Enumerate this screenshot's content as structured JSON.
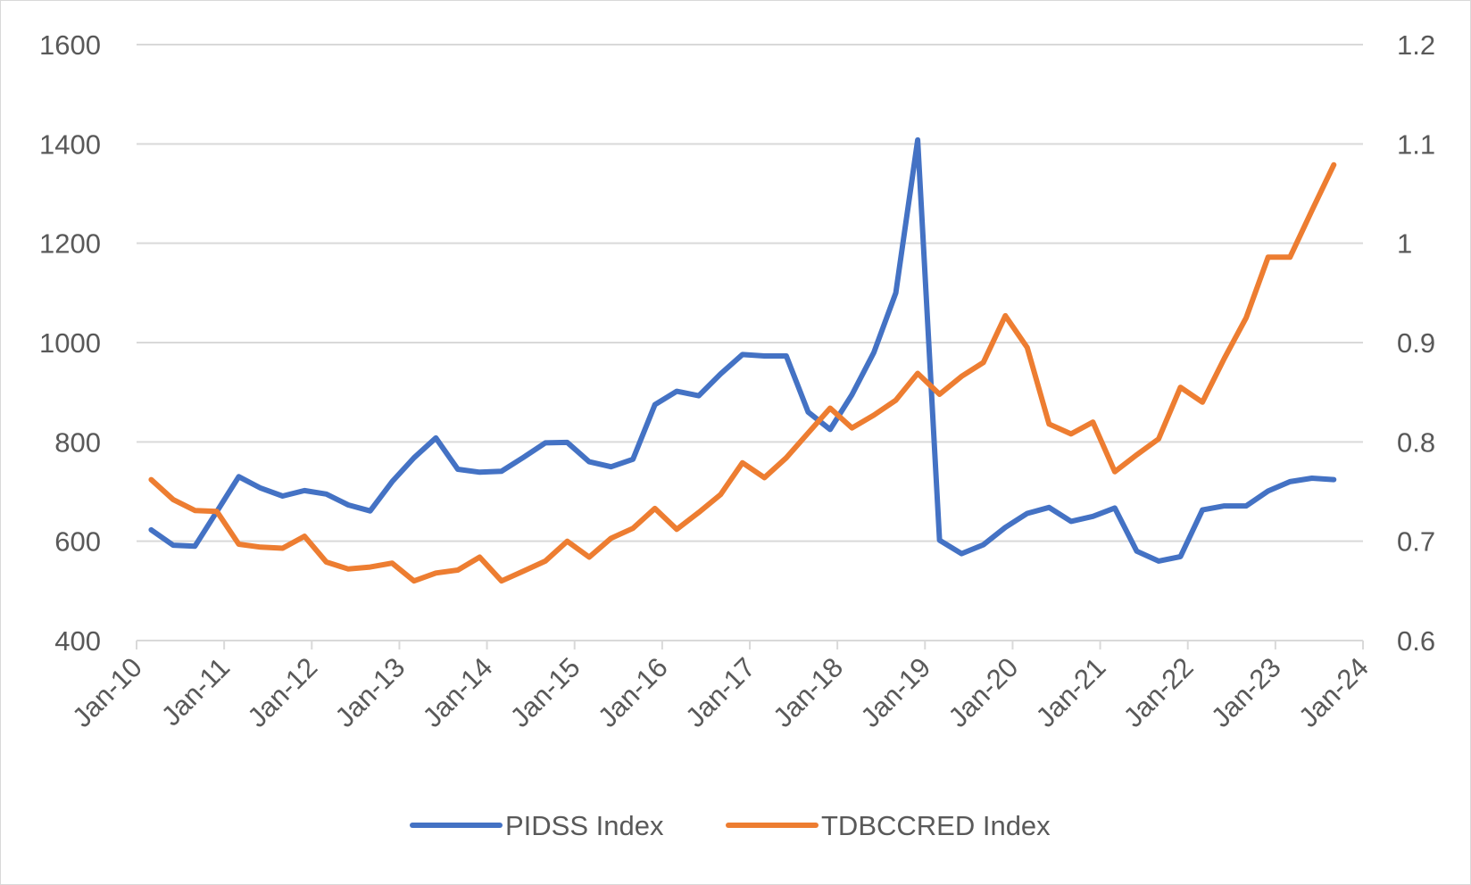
{
  "chart_data": {
    "type": "line",
    "title": "",
    "xlabel": "",
    "ylabel": "",
    "x_ticks": [
      "Jan-10",
      "Jan-11",
      "Jan-12",
      "Jan-13",
      "Jan-14",
      "Jan-15",
      "Jan-16",
      "Jan-17",
      "Jan-18",
      "Jan-19",
      "Jan-20",
      "Jan-21",
      "Jan-22",
      "Jan-23",
      "Jan-24"
    ],
    "x_range": [
      "2010-01",
      "2024-01"
    ],
    "y_left": {
      "min": 400,
      "max": 1600,
      "ticks": [
        "400",
        "600",
        "800",
        "1000",
        "1200",
        "1400",
        "1600"
      ]
    },
    "y_right": {
      "min": 0.6,
      "max": 1.2,
      "ticks": [
        "0.6",
        "0.7",
        "0.8",
        "0.9",
        "1",
        "1.1",
        "1.2"
      ]
    },
    "grid": true,
    "legend_position": "bottom",
    "x": [
      "2010-03",
      "2010-06",
      "2010-09",
      "2010-12",
      "2011-03",
      "2011-06",
      "2011-09",
      "2011-12",
      "2012-03",
      "2012-06",
      "2012-09",
      "2012-12",
      "2013-03",
      "2013-06",
      "2013-09",
      "2013-12",
      "2014-03",
      "2014-06",
      "2014-09",
      "2014-12",
      "2015-03",
      "2015-06",
      "2015-09",
      "2015-12",
      "2016-03",
      "2016-06",
      "2016-09",
      "2016-12",
      "2017-03",
      "2017-06",
      "2017-09",
      "2017-12",
      "2018-03",
      "2018-06",
      "2018-09",
      "2018-12",
      "2019-03",
      "2019-06",
      "2019-09",
      "2019-12",
      "2020-03",
      "2020-06",
      "2020-09",
      "2020-12",
      "2021-03",
      "2021-06",
      "2021-09",
      "2021-12",
      "2022-03",
      "2022-06",
      "2022-09",
      "2022-12",
      "2023-03",
      "2023-06",
      "2023-09"
    ],
    "series": [
      {
        "name": "PIDSS Index",
        "axis": "left",
        "color": "#4472c4",
        "values": [
          623,
          592,
          590,
          660,
          730,
          707,
          691,
          702,
          695,
          673,
          661,
          720,
          768,
          808,
          745,
          739,
          741,
          769,
          798,
          799,
          760,
          750,
          765,
          875,
          902,
          893,
          937,
          976,
          973,
          973,
          860,
          825,
          895,
          980,
          1100,
          1408,
          602,
          575,
          593,
          628,
          656,
          668,
          640,
          650,
          667,
          580,
          560,
          569,
          663,
          671,
          671,
          701,
          720,
          727,
          724
        ]
      },
      {
        "name": "TDBCCRED Index",
        "axis": "right",
        "color": "#ed7d31",
        "values": [
          0.762,
          0.742,
          0.731,
          0.73,
          0.697,
          0.694,
          0.693,
          0.705,
          0.679,
          0.672,
          0.674,
          0.678,
          0.66,
          0.668,
          0.671,
          0.684,
          0.66,
          0.67,
          0.68,
          0.7,
          0.684,
          0.703,
          0.713,
          0.733,
          0.712,
          0.729,
          0.747,
          0.779,
          0.764,
          0.784,
          0.809,
          0.834,
          0.814,
          0.827,
          0.842,
          0.869,
          0.848,
          0.866,
          0.88,
          0.927,
          0.895,
          0.818,
          0.808,
          0.82,
          0.77,
          0.787,
          0.803,
          0.855,
          0.84,
          0.884,
          0.925,
          0.986,
          0.986,
          1.033,
          1.079
        ]
      }
    ]
  }
}
